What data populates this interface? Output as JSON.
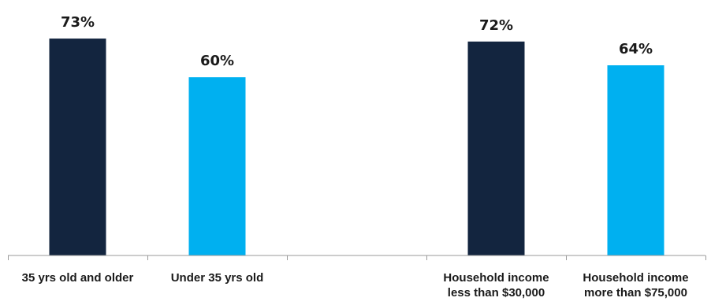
{
  "chart_data": {
    "type": "bar",
    "categories": [
      "35 yrs old and older",
      "Under 35 yrs old",
      "",
      "Household income less than $30,000",
      "Household income more than $75,000"
    ],
    "category_lines": [
      [
        "35 yrs old and older"
      ],
      [
        "Under 35 yrs old"
      ],
      [],
      [
        "Household income",
        "less than $30,000"
      ],
      [
        "Household income",
        "more than $75,000"
      ]
    ],
    "values": [
      73,
      60,
      null,
      72,
      64
    ],
    "value_labels": [
      "73%",
      "60%",
      "",
      "72%",
      "64%"
    ],
    "bar_colors": [
      "#13253f",
      "#00b0f0",
      null,
      "#13253f",
      "#00b0f0"
    ],
    "ylim": [
      0,
      100
    ],
    "grid": false,
    "legend": "none",
    "title": "",
    "xlabel": "",
    "ylabel": ""
  }
}
